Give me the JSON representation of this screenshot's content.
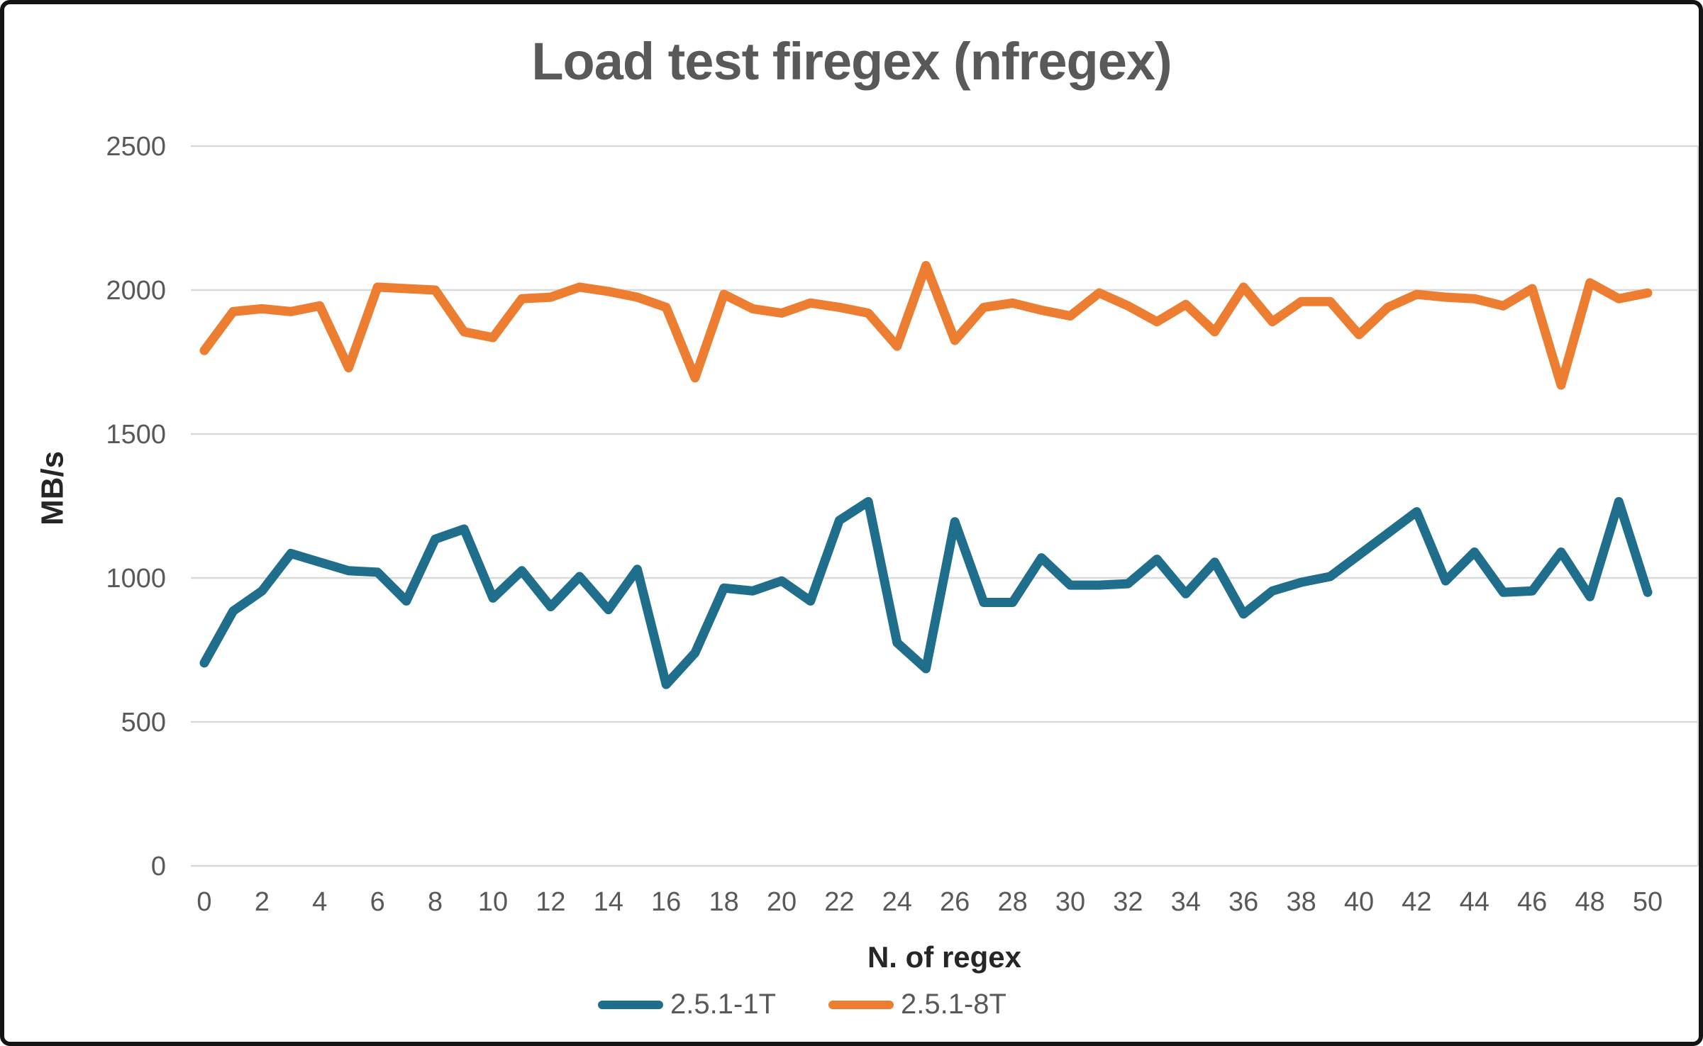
{
  "title": "Load test firegex (nfregex)",
  "chart_data": {
    "type": "line",
    "title": "Load test firegex (nfregex)",
    "xlabel": "N. of regex",
    "ylabel": "MB/s",
    "x": [
      0,
      1,
      2,
      3,
      4,
      5,
      6,
      7,
      8,
      9,
      10,
      11,
      12,
      13,
      14,
      15,
      16,
      17,
      18,
      19,
      20,
      21,
      22,
      23,
      24,
      25,
      26,
      27,
      28,
      29,
      30,
      31,
      32,
      33,
      34,
      35,
      36,
      37,
      38,
      39,
      40,
      41,
      42,
      43,
      44,
      45,
      46,
      47,
      48,
      49,
      50
    ],
    "x_tick_step": 2,
    "y_ticks": [
      0,
      500,
      1000,
      1500,
      2000,
      2500
    ],
    "ylim": [
      0,
      2500
    ],
    "xlim": [
      0,
      50
    ],
    "grid": true,
    "legend_position": "bottom",
    "series": [
      {
        "name": "2.5.1-1T",
        "color": "#1F6E8C",
        "values": [
          705,
          885,
          955,
          1085,
          1055,
          1025,
          1020,
          920,
          1135,
          1170,
          930,
          1025,
          900,
          1005,
          890,
          1030,
          630,
          740,
          965,
          955,
          990,
          920,
          1200,
          1265,
          775,
          685,
          1195,
          915,
          915,
          1070,
          975,
          975,
          980,
          1065,
          945,
          1055,
          875,
          955,
          985,
          1005,
          1080,
          1155,
          1230,
          990,
          1090,
          950,
          955,
          1090,
          935,
          1265,
          950
        ]
      },
      {
        "name": "2.5.1-8T",
        "color": "#ED7D31",
        "values": [
          1790,
          1925,
          1935,
          1925,
          1945,
          1730,
          2010,
          2005,
          2000,
          1855,
          1835,
          1970,
          1975,
          2010,
          1995,
          1975,
          1940,
          1695,
          1985,
          1935,
          1920,
          1955,
          1940,
          1920,
          1805,
          2085,
          1825,
          1940,
          1955,
          1930,
          1910,
          1990,
          1945,
          1890,
          1950,
          1855,
          2010,
          1890,
          1960,
          1960,
          1845,
          1940,
          1985,
          1975,
          1970,
          1945,
          2005,
          1670,
          2025,
          1970,
          1990
        ]
      }
    ]
  },
  "colors": {
    "gridline": "#D9D9D9",
    "tick_text": "#595959",
    "axis_title_text": "#262626",
    "chart_title_text": "#595959",
    "background": "#ffffff",
    "frame_border": "#141414"
  }
}
